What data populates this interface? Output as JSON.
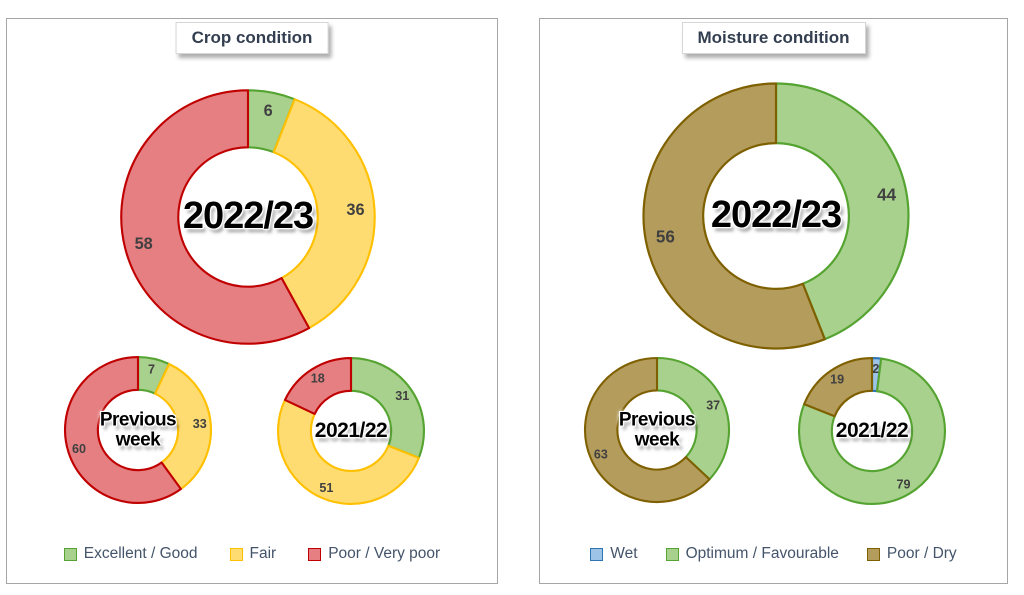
{
  "panels": {
    "crop": {
      "title": "Crop condition",
      "legend": [
        {
          "label": "Excellent / Good",
          "fill": "#A9D18E",
          "stroke": "#55A331"
        },
        {
          "label": "Fair",
          "fill": "#FFDC72",
          "stroke": "#FFC000"
        },
        {
          "label": "Poor / Very poor",
          "fill": "#E57F82",
          "stroke": "#C00000"
        }
      ]
    },
    "moisture": {
      "title": "Moisture condition",
      "legend": [
        {
          "label": "Wet",
          "fill": "#9DC3E6",
          "stroke": "#2E75B6"
        },
        {
          "label": "Optimum / Favourable",
          "fill": "#A9D18E",
          "stroke": "#55A331"
        },
        {
          "label": "Poor / Dry",
          "fill": "#B49C5D",
          "stroke": "#7F6000"
        }
      ]
    }
  },
  "colors": {
    "label_text": "#404040",
    "title_text": "#333F50",
    "legend_text": "#44546A",
    "panel_border": "#A6A6A6"
  },
  "chart_data": [
    {
      "type": "pie",
      "subtype": "donut",
      "id": "crop-2022-23",
      "center_label": "2022/23",
      "categories": [
        "Excellent / Good",
        "Fair",
        "Poor / Very poor"
      ],
      "values": [
        6,
        36,
        58
      ],
      "labels": [
        "6",
        "36",
        "58"
      ],
      "fills": [
        "#A9D18E",
        "#FFDC72",
        "#E57F82"
      ],
      "strokes": [
        "#55A331",
        "#FFC000",
        "#C00000"
      ],
      "inner_ratio": 0.55,
      "start_angle": 0,
      "direction": "clockwise"
    },
    {
      "type": "pie",
      "subtype": "donut",
      "id": "crop-previous-week",
      "center_label": "Previous\nweek",
      "categories": [
        "Excellent / Good",
        "Fair",
        "Poor / Very poor"
      ],
      "values": [
        7,
        33,
        60
      ],
      "labels": [
        "7",
        "33",
        "60"
      ],
      "fills": [
        "#A9D18E",
        "#FFDC72",
        "#E57F82"
      ],
      "strokes": [
        "#55A331",
        "#FFC000",
        "#C00000"
      ],
      "inner_ratio": 0.55,
      "start_angle": 0,
      "direction": "clockwise"
    },
    {
      "type": "pie",
      "subtype": "donut",
      "id": "crop-2021-22",
      "center_label": "2021/22",
      "categories": [
        "Excellent / Good",
        "Fair",
        "Poor / Very poor"
      ],
      "values": [
        31,
        51,
        18
      ],
      "labels": [
        "31",
        "51",
        "18"
      ],
      "fills": [
        "#A9D18E",
        "#FFDC72",
        "#E57F82"
      ],
      "strokes": [
        "#55A331",
        "#FFC000",
        "#C00000"
      ],
      "inner_ratio": 0.55,
      "start_angle": 0,
      "direction": "clockwise"
    },
    {
      "type": "pie",
      "subtype": "donut",
      "id": "moisture-2022-23",
      "center_label": "2022/23",
      "categories": [
        "Wet",
        "Optimum / Favourable",
        "Poor / Dry"
      ],
      "values": [
        0,
        44,
        56
      ],
      "labels": [
        "-",
        "44",
        "56"
      ],
      "fills": [
        "#9DC3E6",
        "#A9D18E",
        "#B49C5D"
      ],
      "strokes": [
        "#2E75B6",
        "#55A331",
        "#7F6000"
      ],
      "inner_ratio": 0.55,
      "start_angle": 0,
      "direction": "clockwise"
    },
    {
      "type": "pie",
      "subtype": "donut",
      "id": "moisture-previous-week",
      "center_label": "Previous\nweek",
      "categories": [
        "Wet",
        "Optimum / Favourable",
        "Poor / Dry"
      ],
      "values": [
        0,
        37,
        63
      ],
      "labels": [
        "-",
        "37",
        "63"
      ],
      "fills": [
        "#9DC3E6",
        "#A9D18E",
        "#B49C5D"
      ],
      "strokes": [
        "#2E75B6",
        "#55A331",
        "#7F6000"
      ],
      "inner_ratio": 0.55,
      "start_angle": 0,
      "direction": "clockwise"
    },
    {
      "type": "pie",
      "subtype": "donut",
      "id": "moisture-2021-22",
      "center_label": "2021/22",
      "categories": [
        "Wet",
        "Optimum / Favourable",
        "Poor / Dry"
      ],
      "values": [
        2,
        79,
        19
      ],
      "labels": [
        "2",
        "79",
        "19"
      ],
      "fills": [
        "#9DC3E6",
        "#A9D18E",
        "#B49C5D"
      ],
      "strokes": [
        "#2E75B6",
        "#55A331",
        "#7F6000"
      ],
      "inner_ratio": 0.55,
      "start_angle": 0,
      "direction": "clockwise"
    }
  ]
}
